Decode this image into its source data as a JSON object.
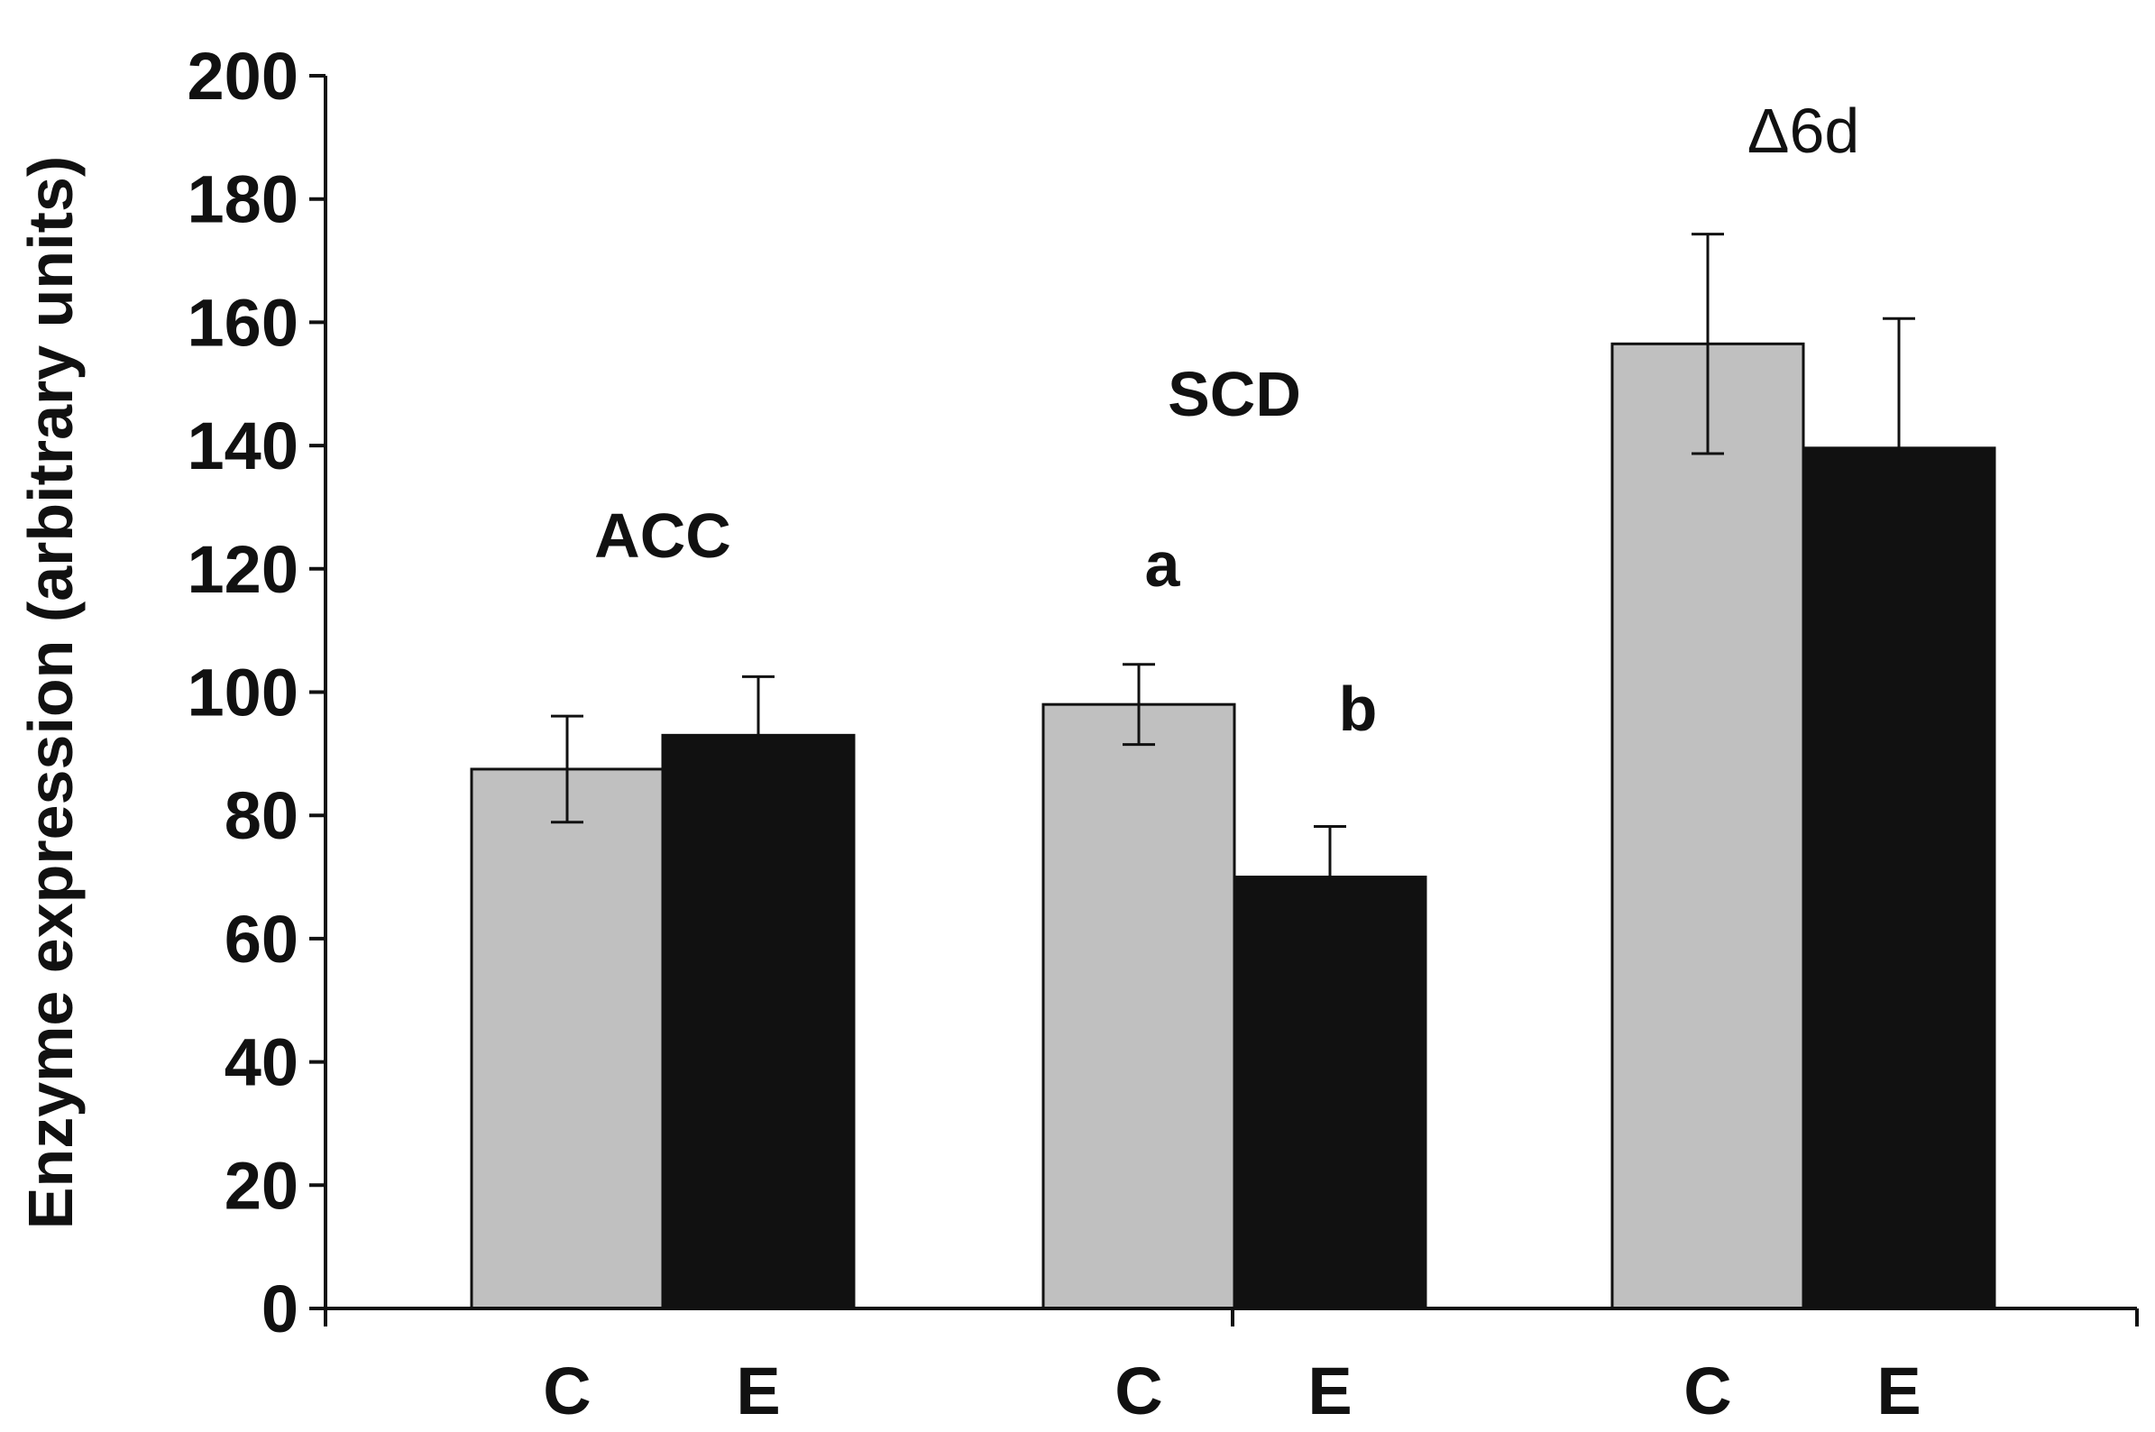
{
  "chart_data": {
    "type": "bar",
    "title": "",
    "xlabel": "",
    "ylabel": "Enzyme expression (arbitrary units)",
    "ylim": [
      0,
      200
    ],
    "yticks": [
      0,
      20,
      40,
      60,
      80,
      100,
      120,
      140,
      160,
      180,
      200
    ],
    "grid": false,
    "groups": [
      {
        "name": "ACC",
        "bars": [
          {
            "label": "C",
            "value": 87.5,
            "error": 8.6,
            "letter": ""
          },
          {
            "label": "E",
            "value": 93,
            "error": 9.5,
            "letter": ""
          }
        ]
      },
      {
        "name": "SCD",
        "bars": [
          {
            "label": "C",
            "value": 98,
            "error": 6.5,
            "letter": "a"
          },
          {
            "label": "E",
            "value": 70,
            "error": 8.2,
            "letter": "b"
          }
        ]
      },
      {
        "name": "Δ6d",
        "bars": [
          {
            "label": "C",
            "value": 156.5,
            "error": 17.8,
            "letter": ""
          },
          {
            "label": "E",
            "value": 139.6,
            "error": 21,
            "letter": ""
          }
        ]
      }
    ],
    "colors": {
      "C": "#c0c0c0",
      "E": "#111111"
    }
  }
}
